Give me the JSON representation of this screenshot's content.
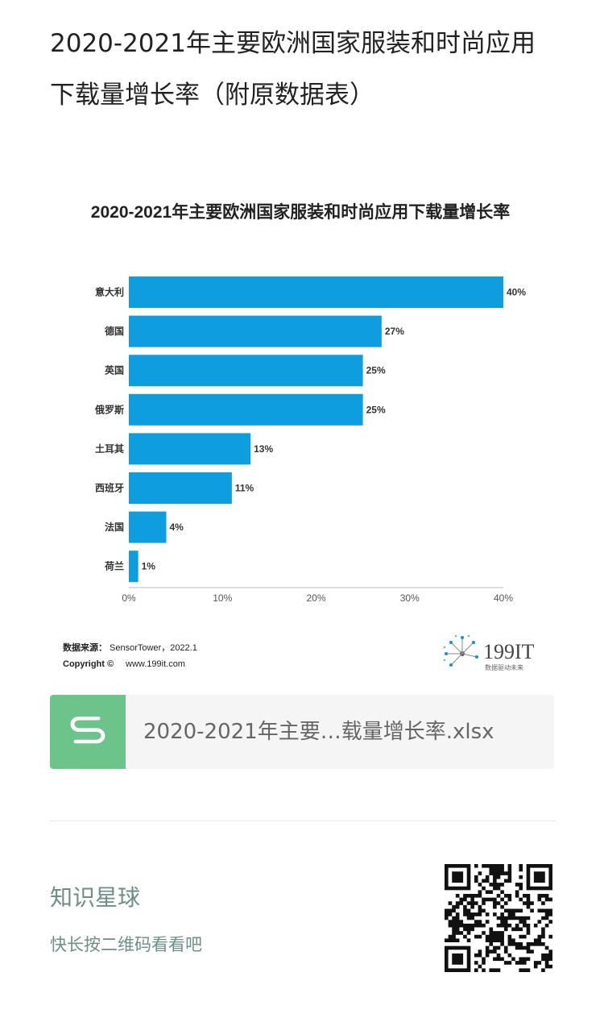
{
  "article": {
    "title": "2020-2021年主要欧洲国家服装和时尚应用下载量增长率（附原数据表）"
  },
  "chart_data": {
    "type": "bar",
    "orientation": "horizontal",
    "title": "2020-2021年主要欧洲国家服装和时尚应用下载量增长率",
    "categories": [
      "意大利",
      "德国",
      "英国",
      "俄罗斯",
      "土耳其",
      "西班牙",
      "法国",
      "荷兰"
    ],
    "values": [
      40,
      27,
      25,
      25,
      13,
      11,
      4,
      1
    ],
    "value_labels": [
      "40%",
      "27%",
      "25%",
      "25%",
      "13%",
      "11%",
      "4%",
      "1%"
    ],
    "x_ticks": [
      "0%",
      "10%",
      "20%",
      "30%",
      "40%"
    ],
    "xlim": [
      0,
      40
    ],
    "bar_color": "#0e9ee0",
    "grid": false,
    "source_label": "数据来源：",
    "source_text": "SensorTower，2022.1",
    "copyright_label": "Copyright ©",
    "copyright_text": "www.199it.com",
    "logo_text": "199IT",
    "logo_tagline": "数据驱动未来"
  },
  "attachment": {
    "file_name": "2020-2021年主要…载量增长率.xlsx",
    "icon": "spreadsheet-icon",
    "accent": "#6cc48a"
  },
  "footer": {
    "planet_title": "知识星球",
    "planet_hint": "快长按二维码看看吧",
    "text_color": "#6e8e86",
    "qr_icon": "qr-code-icon"
  }
}
